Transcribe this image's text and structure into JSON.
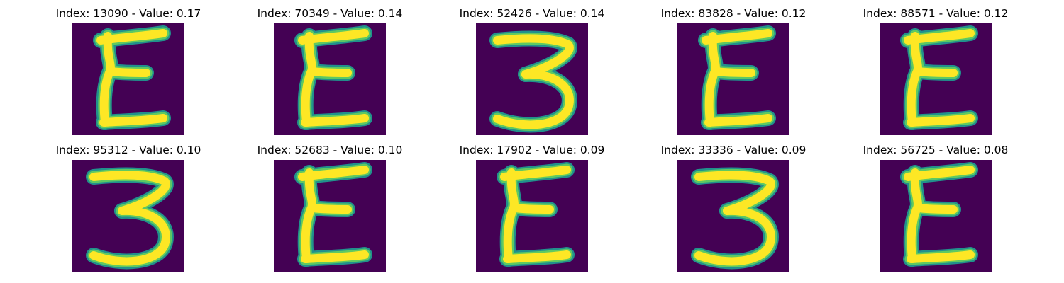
{
  "colors": {
    "background": "#440154",
    "stroke_core": "#fde725",
    "stroke_halo": "#21918c",
    "stroke_mid": "#5ec962"
  },
  "panels": [
    {
      "title": "Index: 13090 - Value: 0.17",
      "index": 13090,
      "value": 0.17,
      "glyph": "E"
    },
    {
      "title": "Index: 70349 - Value: 0.14",
      "index": 70349,
      "value": 0.14,
      "glyph": "E"
    },
    {
      "title": "Index: 52426 - Value: 0.14",
      "index": 52426,
      "value": 0.14,
      "glyph": "3"
    },
    {
      "title": "Index: 83828 - Value: 0.12",
      "index": 83828,
      "value": 0.12,
      "glyph": "E"
    },
    {
      "title": "Index: 88571 - Value: 0.12",
      "index": 88571,
      "value": 0.12,
      "glyph": "E"
    },
    {
      "title": "Index: 95312 - Value: 0.10",
      "index": 95312,
      "value": 0.1,
      "glyph": "3"
    },
    {
      "title": "Index: 52683 - Value: 0.10",
      "index": 52683,
      "value": 0.1,
      "glyph": "E"
    },
    {
      "title": "Index: 17902 - Value: 0.09",
      "index": 17902,
      "value": 0.09,
      "glyph": "E"
    },
    {
      "title": "Index: 33336 - Value: 0.09",
      "index": 33336,
      "value": 0.09,
      "glyph": "3"
    },
    {
      "title": "Index: 56725 - Value: 0.08",
      "index": 56725,
      "value": 0.08,
      "glyph": "E"
    }
  ]
}
